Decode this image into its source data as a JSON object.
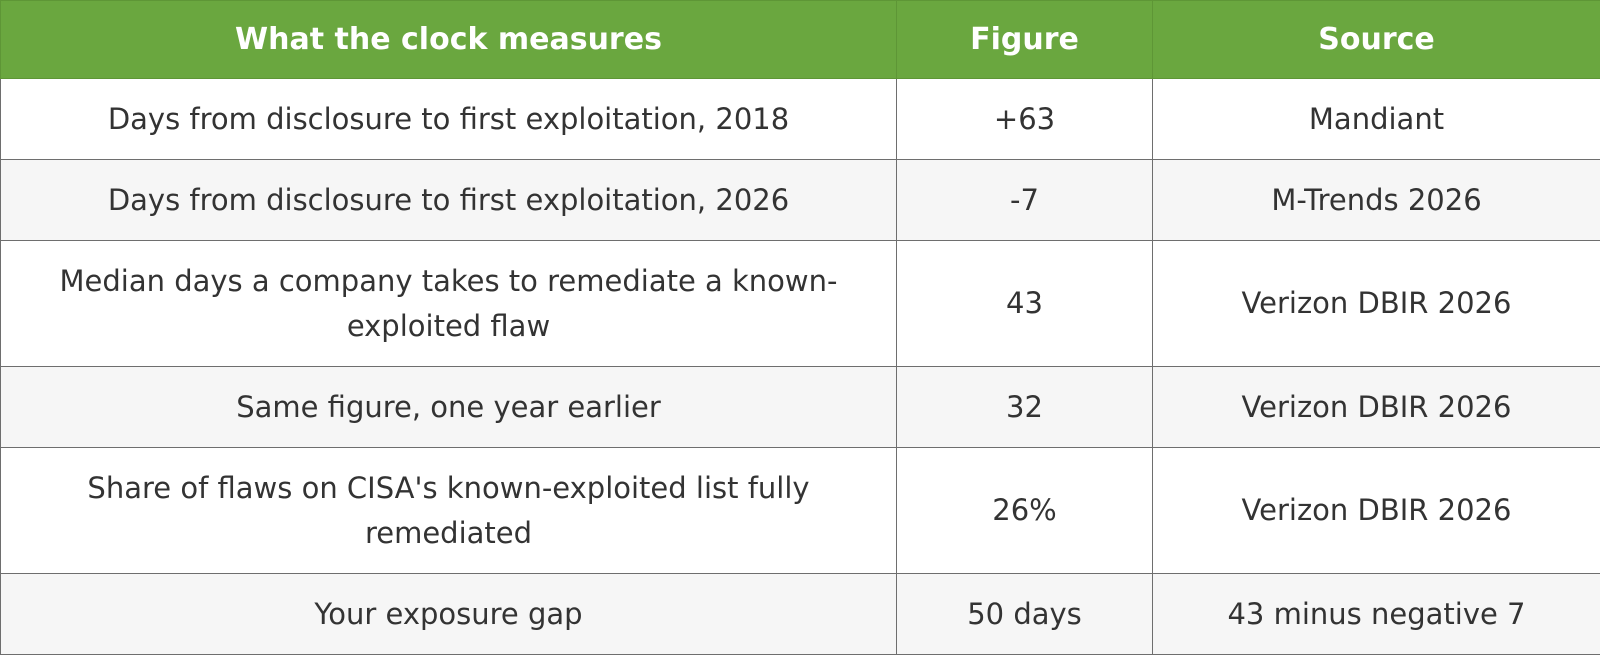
{
  "table": {
    "headers": [
      "What the clock measures",
      "Figure",
      "Source"
    ],
    "rows": [
      {
        "measure": "Days from disclosure to first exploitation, 2018",
        "figure": "+63",
        "source": "Mandiant"
      },
      {
        "measure": "Days from disclosure to first exploitation, 2026",
        "figure": "-7",
        "source": "M-Trends 2026"
      },
      {
        "measure": "Median days a company takes to remediate a known-exploited flaw",
        "figure": "43",
        "source": "Verizon DBIR 2026"
      },
      {
        "measure": "Same figure, one year earlier",
        "figure": "32",
        "source": "Verizon DBIR 2026"
      },
      {
        "measure": "Share of flaws on CISA's known-exploited list fully remediated",
        "figure": "26%",
        "source": "Verizon DBIR 2026"
      },
      {
        "measure": "Your exposure gap",
        "figure": "50 days",
        "source": "43 minus negative 7"
      }
    ]
  },
  "colors": {
    "header_bg": "#6aa73f",
    "header_text": "#ffffff",
    "row_alt_bg": "#f6f6f6",
    "row_bg": "#ffffff",
    "border": "#6e6e6e",
    "body_text": "#333333"
  }
}
